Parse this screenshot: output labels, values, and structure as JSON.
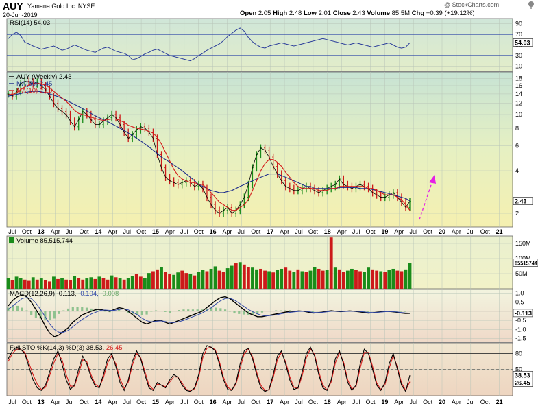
{
  "header": {
    "symbol": "AUY",
    "company": "Yamana Gold Inc.",
    "exchange": "NYSE",
    "date": "20-Jun-2019",
    "credit": "@ StockCharts.com",
    "quote": {
      "open_label": "Open",
      "open": "2.05",
      "high_label": "High",
      "high": "2.48",
      "low_label": "Low",
      "low": "2.01",
      "close_label": "Close",
      "close": "2.43",
      "volume_label": "Volume",
      "volume": "85.5M",
      "chg_label": "Chg",
      "chg": "+0.39 (+19.12%)"
    }
  },
  "x_axis_labels": [
    "Jul",
    "Oct",
    "13",
    "Apr",
    "Jul",
    "Oct",
    "14",
    "Apr",
    "Jul",
    "Oct",
    "15",
    "Apr",
    "Jul",
    "Oct",
    "16",
    "Apr",
    "Jul",
    "Oct",
    "17",
    "Apr",
    "Jul",
    "Oct",
    "18",
    "Apr",
    "Jul",
    "Oct",
    "19",
    "Apr",
    "Jul",
    "Oct",
    "20",
    "Apr",
    "Jul",
    "Oct",
    "21"
  ],
  "colors": {
    "ma50": "#1c2b8c",
    "ma10": "#d41818",
    "price": "#000000",
    "up": "#1a8c1a",
    "down": "#cc1a1a",
    "arrow": "#e61ee6"
  },
  "chart_data": [
    {
      "type": "line",
      "panel": "rsi",
      "legend": "RSI(14) 54.03",
      "current": "54.03",
      "y_ticks": [
        10,
        30,
        50,
        70,
        90
      ],
      "ylim": [
        0,
        100
      ],
      "bands": [
        30,
        70
      ],
      "values": [
        62,
        70,
        74,
        68,
        55,
        52,
        48,
        45,
        42,
        44,
        46,
        48,
        44,
        40,
        42,
        46,
        50,
        47,
        43,
        40,
        38,
        36,
        40,
        44,
        46,
        42,
        38,
        36,
        34,
        30,
        22,
        24,
        28,
        33,
        36,
        40,
        42,
        38,
        34,
        30,
        28,
        26,
        24,
        22,
        20,
        24,
        30,
        34,
        40,
        44,
        48,
        52,
        58,
        66,
        72,
        78,
        82,
        76,
        64,
        56,
        50,
        46,
        44,
        48,
        50,
        52,
        54,
        52,
        50,
        48,
        50,
        52,
        54,
        56,
        58,
        60,
        62,
        60,
        58,
        56,
        54,
        52,
        50,
        52,
        54,
        52,
        50,
        48,
        46,
        48,
        50,
        52,
        54,
        50,
        46,
        44,
        46,
        54
      ]
    },
    {
      "type": "line",
      "panel": "price",
      "legend_main": "AUY (Weekly) 2.43",
      "legend_ma50": "MA(50) 2.45",
      "legend_ma10": "MA(10) 2.10",
      "current": "2.43",
      "scale": "log",
      "y_ticks": [
        2,
        4,
        6,
        8,
        10,
        12,
        14,
        16,
        18
      ],
      "ylim": [
        1.6,
        20
      ],
      "close": [
        14,
        13.5,
        14.5,
        16.5,
        17.2,
        17,
        16.5,
        17,
        16,
        15,
        13.5,
        12,
        11,
        10.5,
        10,
        9,
        8.2,
        9.2,
        10.5,
        10,
        9.2,
        8.5,
        8.5,
        9,
        9.5,
        10,
        9.5,
        8.5,
        7.5,
        6.8,
        7.2,
        7.8,
        8.2,
        8,
        7.5,
        6.8,
        5.2,
        4.2,
        3.6,
        3.4,
        3.3,
        3.2,
        3.3,
        3.4,
        3.3,
        3.1,
        3.2,
        3.0,
        2.6,
        2.3,
        2.1,
        2.0,
        2.1,
        2.2,
        2.0,
        2.1,
        2.3,
        2.6,
        3.2,
        4.2,
        5.2,
        5.8,
        5.6,
        5.0,
        4.3,
        3.8,
        3.4,
        3.1,
        3.0,
        2.9,
        2.9,
        3.0,
        3.1,
        3.0,
        2.9,
        2.8,
        2.9,
        3.0,
        3.1,
        3.2,
        3.5,
        3.2,
        3.1,
        3.0,
        3.1,
        3.2,
        3.1,
        3.0,
        2.8,
        2.7,
        2.6,
        2.6,
        2.7,
        2.8,
        2.6,
        2.4,
        2.2,
        2.43
      ],
      "ma10": [
        13.8,
        13.9,
        14.2,
        15,
        15.7,
        16.2,
        16.5,
        16.6,
        16.5,
        16.1,
        15.5,
        14.6,
        13.8,
        13.1,
        12.4,
        11.6,
        10.7,
        10.2,
        10,
        9.8,
        9.6,
        9.4,
        9.2,
        9.1,
        9.2,
        9.3,
        9.3,
        9.1,
        8.8,
        8.4,
        8.2,
        8.0,
        7.9,
        7.8,
        7.6,
        7.4,
        6.9,
        6.2,
        5.4,
        4.7,
        4.1,
        3.7,
        3.5,
        3.4,
        3.3,
        3.3,
        3.2,
        3.2,
        3.0,
        2.8,
        2.6,
        2.4,
        2.3,
        2.2,
        2.1,
        2.1,
        2.2,
        2.3,
        2.5,
        2.9,
        3.4,
        4.0,
        4.5,
        4.8,
        4.8,
        4.6,
        4.3,
        3.9,
        3.6,
        3.3,
        3.1,
        3.0,
        3.0,
        3.0,
        3.0,
        2.9,
        2.9,
        2.9,
        3.0,
        3.0,
        3.1,
        3.1,
        3.1,
        3.1,
        3.1,
        3.1,
        3.1,
        3.0,
        3.0,
        2.9,
        2.8,
        2.7,
        2.7,
        2.7,
        2.6,
        2.5,
        2.3,
        2.1
      ],
      "ma50": [
        13.5,
        13.7,
        13.9,
        14.1,
        14.3,
        14.5,
        14.6,
        14.6,
        14.5,
        14.3,
        14.0,
        13.7,
        13.4,
        13.0,
        12.6,
        12.2,
        11.8,
        11.4,
        11.0,
        10.6,
        10.2,
        9.8,
        9.5,
        9.2,
        8.9,
        8.6,
        8.3,
        8.0,
        7.7,
        7.4,
        7.1,
        6.8,
        6.5,
        6.2,
        5.9,
        5.6,
        5.3,
        5.0,
        4.8,
        4.6,
        4.4,
        4.2,
        4.0,
        3.8,
        3.6,
        3.4,
        3.2,
        3.1,
        3.0,
        2.9,
        2.85,
        2.8,
        2.8,
        2.85,
        2.9,
        3.0,
        3.1,
        3.2,
        3.3,
        3.4,
        3.5,
        3.6,
        3.7,
        3.8,
        3.8,
        3.8,
        3.7,
        3.6,
        3.5,
        3.4,
        3.3,
        3.2,
        3.1,
        3.1,
        3.0,
        3.0,
        3.0,
        3.0,
        3.0,
        3.0,
        3.05,
        3.05,
        3.05,
        3.05,
        3.05,
        3.0,
        3.0,
        3.0,
        2.95,
        2.9,
        2.85,
        2.8,
        2.75,
        2.7,
        2.65,
        2.6,
        2.55,
        2.45
      ]
    },
    {
      "type": "bar",
      "panel": "volume",
      "legend": "Volume 85,515,744",
      "current": "85515744",
      "y_ticks_labels": [
        "50M",
        "100M",
        "150M"
      ],
      "y_ticks": [
        50,
        100,
        150
      ],
      "ylim": [
        0,
        175
      ],
      "unit": "millions",
      "values": [
        35,
        28,
        40,
        36,
        30,
        26,
        38,
        30,
        34,
        28,
        24,
        40,
        32,
        36,
        30,
        28,
        42,
        36,
        30,
        34,
        38,
        32,
        40,
        36,
        30,
        44,
        38,
        34,
        30,
        36,
        42,
        48,
        40,
        36,
        52,
        58,
        64,
        72,
        56,
        50,
        46,
        54,
        60,
        52,
        48,
        44,
        56,
        62,
        58,
        66,
        74,
        60,
        56,
        68,
        76,
        84,
        88,
        80,
        72,
        70,
        64,
        66,
        60,
        58,
        54,
        62,
        66,
        70,
        60,
        56,
        64,
        58,
        56,
        60,
        72,
        66,
        60,
        62,
        170,
        70,
        64,
        56,
        60,
        66,
        62,
        58,
        56,
        70,
        64,
        60,
        58,
        56,
        62,
        66,
        60,
        58,
        64,
        86
      ],
      "up_flags": [
        1,
        0,
        1,
        1,
        0,
        0,
        1,
        0,
        1,
        0,
        0,
        1,
        0,
        1,
        0,
        0,
        1,
        0,
        0,
        1,
        1,
        0,
        1,
        0,
        0,
        1,
        0,
        1,
        0,
        1,
        1,
        0,
        0,
        1,
        1,
        0,
        0,
        1,
        0,
        0,
        1,
        1,
        0,
        0,
        1,
        0,
        1,
        1,
        0,
        1,
        1,
        0,
        0,
        1,
        1,
        0,
        1,
        0,
        0,
        1,
        1,
        0,
        0,
        1,
        0,
        1,
        1,
        0,
        0,
        1,
        0,
        1,
        0,
        1,
        1,
        0,
        0,
        1,
        0,
        1,
        0,
        0,
        1,
        1,
        0,
        0,
        1,
        1,
        0,
        0,
        1,
        0,
        1,
        1,
        0,
        0,
        1,
        1
      ]
    },
    {
      "type": "line",
      "panel": "macd",
      "legend_label": "MACD(12,26,9)",
      "legend_macd": "-0.113",
      "legend_signal": "-0.104",
      "legend_hist": "-0.008",
      "current": "-0.113",
      "y_ticks": [
        -1.5,
        -1.0,
        -0.5,
        0.5,
        1.0
      ],
      "ylim": [
        -1.7,
        1.2
      ],
      "macd": [
        0.3,
        0.6,
        0.8,
        0.9,
        0.8,
        0.5,
        0.1,
        -0.3,
        -0.8,
        -1.2,
        -1.4,
        -1.3,
        -1.1,
        -0.9,
        -0.6,
        -0.4,
        -0.2,
        -0.1,
        0.0,
        0.1,
        0.1,
        0.05,
        0.0,
        0.1,
        0.2,
        0.15,
        0.0,
        -0.2,
        -0.4,
        -0.6,
        -0.7,
        -0.6,
        -0.5,
        -0.5,
        -0.6,
        -0.7,
        -0.6,
        -0.5,
        -0.4,
        -0.3,
        -0.2,
        -0.1,
        0.0,
        0.2,
        0.4,
        0.6,
        0.75,
        0.8,
        0.7,
        0.5,
        0.3,
        0.1,
        -0.1,
        -0.2,
        -0.3,
        -0.3,
        -0.25,
        -0.2,
        -0.15,
        -0.1,
        -0.05,
        0.0,
        0.0,
        0.02,
        0.0,
        -0.05,
        -0.1,
        -0.08,
        -0.05,
        0.0,
        0.03,
        0.0,
        -0.02,
        0.0,
        0.02,
        0.0,
        -0.03,
        -0.06,
        -0.1,
        -0.08,
        -0.05,
        -0.02,
        0.0,
        -0.02,
        -0.05,
        -0.09,
        -0.12,
        -0.113
      ],
      "signal": [
        0.1,
        0.3,
        0.5,
        0.7,
        0.75,
        0.7,
        0.45,
        0.1,
        -0.3,
        -0.7,
        -1.0,
        -1.15,
        -1.15,
        -1.05,
        -0.85,
        -0.65,
        -0.45,
        -0.3,
        -0.15,
        -0.05,
        0.05,
        0.07,
        0.05,
        0.05,
        0.1,
        0.13,
        0.08,
        -0.05,
        -0.2,
        -0.38,
        -0.52,
        -0.58,
        -0.55,
        -0.53,
        -0.56,
        -0.62,
        -0.62,
        -0.57,
        -0.5,
        -0.4,
        -0.3,
        -0.2,
        -0.1,
        0.05,
        0.2,
        0.4,
        0.58,
        0.7,
        0.72,
        0.62,
        0.45,
        0.28,
        0.1,
        -0.03,
        -0.15,
        -0.23,
        -0.25,
        -0.23,
        -0.2,
        -0.15,
        -0.1,
        -0.06,
        -0.03,
        -0.01,
        0.0,
        -0.02,
        -0.06,
        -0.07,
        -0.06,
        -0.03,
        0.0,
        0.0,
        -0.01,
        -0.01,
        0.0,
        0.0,
        -0.01,
        -0.03,
        -0.06,
        -0.07,
        -0.06,
        -0.04,
        -0.02,
        -0.02,
        -0.03,
        -0.06,
        -0.09,
        -0.104
      ]
    },
    {
      "type": "line",
      "panel": "stochastic",
      "legend_label": "Full STO %K(14,3) %D(3)",
      "legend_k": "38.53",
      "legend_d": "26.45",
      "current_k": "38.53",
      "current_d": "26.45",
      "y_ticks": [
        20,
        50,
        80
      ],
      "bands": [
        20,
        80
      ],
      "ylim": [
        0,
        100
      ],
      "k": [
        70,
        85,
        92,
        88,
        80,
        55,
        30,
        15,
        10,
        20,
        45,
        70,
        85,
        60,
        30,
        12,
        20,
        50,
        75,
        60,
        35,
        18,
        15,
        40,
        70,
        80,
        55,
        25,
        10,
        30,
        65,
        85,
        70,
        40,
        15,
        10,
        25,
        20,
        15,
        30,
        40,
        35,
        20,
        10,
        8,
        15,
        40,
        80,
        95,
        92,
        85,
        60,
        30,
        12,
        10,
        25,
        60,
        85,
        90,
        70,
        40,
        15,
        8,
        12,
        40,
        75,
        85,
        60,
        30,
        12,
        15,
        45,
        80,
        92,
        75,
        40,
        15,
        10,
        30,
        70,
        85,
        60,
        25,
        10,
        20,
        60,
        88,
        80,
        50,
        20,
        10,
        25,
        60,
        80,
        50,
        20,
        8,
        38.53
      ],
      "d": [
        65,
        80,
        88,
        88,
        82,
        62,
        40,
        22,
        12,
        16,
        38,
        62,
        80,
        68,
        40,
        18,
        18,
        42,
        68,
        64,
        40,
        22,
        16,
        34,
        62,
        76,
        60,
        32,
        14,
        26,
        58,
        80,
        72,
        46,
        20,
        12,
        22,
        20,
        17,
        26,
        36,
        35,
        24,
        12,
        10,
        13,
        34,
        72,
        90,
        92,
        87,
        65,
        35,
        16,
        11,
        22,
        52,
        80,
        88,
        74,
        45,
        20,
        10,
        11,
        34,
        68,
        82,
        64,
        36,
        16,
        14,
        38,
        72,
        89,
        78,
        46,
        20,
        11,
        26,
        62,
        82,
        64,
        30,
        13,
        17,
        52,
        82,
        82,
        56,
        24,
        12,
        21,
        52,
        76,
        54,
        24,
        10,
        26.45
      ]
    }
  ]
}
